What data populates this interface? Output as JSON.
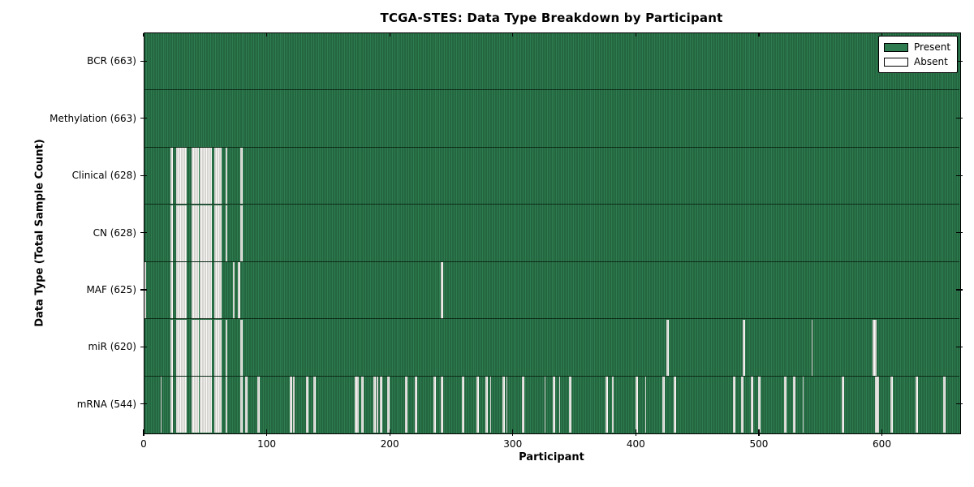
{
  "chart_data": {
    "type": "heatmap",
    "title": "TCGA-STES: Data Type Breakdown by Participant",
    "xlabel": "Participant",
    "ylabel": "Data Type (Total Sample Count)",
    "legend": [
      "Present",
      "Absent"
    ],
    "legend_position": "upper right",
    "n_participants": 663,
    "xlim": [
      0,
      663
    ],
    "xticks": [
      0,
      100,
      200,
      300,
      400,
      500,
      600
    ],
    "grid": false,
    "colors": {
      "present_fill": "#2e7c4f",
      "present_edge": "#1a5031",
      "absent_fill": "#f7f6f3",
      "absent_edge": "#b4b2af",
      "axis": "#000000",
      "background": "#ffffff"
    },
    "rows": [
      {
        "data_type": "BCR",
        "label": "BCR (663)",
        "present_count": 663,
        "absent_ranges": []
      },
      {
        "data_type": "Methylation",
        "label": "Methylation (663)",
        "present_count": 663,
        "absent_ranges": []
      },
      {
        "data_type": "Clinical",
        "label": "Clinical (628)",
        "present_count": 628,
        "absent_ranges": [
          [
            21,
            22
          ],
          [
            26,
            33
          ],
          [
            38,
            43
          ],
          [
            45,
            54
          ],
          [
            57,
            62
          ],
          [
            66,
            66
          ],
          [
            78,
            79
          ]
        ]
      },
      {
        "data_type": "CN",
        "label": "CN (628)",
        "present_count": 628,
        "absent_ranges": [
          [
            21,
            22
          ],
          [
            26,
            33
          ],
          [
            38,
            43
          ],
          [
            45,
            54
          ],
          [
            57,
            62
          ],
          [
            66,
            66
          ],
          [
            78,
            79
          ]
        ]
      },
      {
        "data_type": "MAF",
        "label": "MAF (625)",
        "present_count": 625,
        "absent_ranges": [
          [
            0,
            0
          ],
          [
            21,
            22
          ],
          [
            26,
            33
          ],
          [
            38,
            43
          ],
          [
            45,
            54
          ],
          [
            57,
            62
          ],
          [
            72,
            72
          ],
          [
            76,
            77
          ],
          [
            241,
            242
          ]
        ]
      },
      {
        "data_type": "miR",
        "label": "miR (620)",
        "present_count": 620,
        "absent_ranges": [
          [
            21,
            22
          ],
          [
            26,
            33
          ],
          [
            38,
            43
          ],
          [
            45,
            54
          ],
          [
            57,
            62
          ],
          [
            66,
            66
          ],
          [
            78,
            79
          ],
          [
            424,
            425
          ],
          [
            486,
            487
          ],
          [
            542,
            542
          ],
          [
            592,
            594
          ]
        ]
      },
      {
        "data_type": "mRNA",
        "label": "mRNA (544)",
        "present_count": 544,
        "absent_ranges": [
          [
            13,
            13
          ],
          [
            21,
            22
          ],
          [
            26,
            33
          ],
          [
            38,
            43
          ],
          [
            45,
            54
          ],
          [
            57,
            62
          ],
          [
            66,
            66
          ],
          [
            78,
            79
          ],
          [
            82,
            83
          ],
          [
            92,
            93
          ],
          [
            118,
            119
          ],
          [
            121,
            121
          ],
          [
            131,
            132
          ],
          [
            137,
            138
          ],
          [
            171,
            173
          ],
          [
            176,
            177
          ],
          [
            186,
            187
          ],
          [
            189,
            189
          ],
          [
            191,
            192
          ],
          [
            197,
            198
          ],
          [
            212,
            213
          ],
          [
            220,
            221
          ],
          [
            235,
            236
          ],
          [
            241,
            242
          ],
          [
            258,
            259
          ],
          [
            270,
            271
          ],
          [
            277,
            278
          ],
          [
            281,
            281
          ],
          [
            291,
            292
          ],
          [
            294,
            294
          ],
          [
            307,
            308
          ],
          [
            325,
            325
          ],
          [
            332,
            333
          ],
          [
            337,
            337
          ],
          [
            345,
            346
          ],
          [
            375,
            376
          ],
          [
            380,
            380
          ],
          [
            399,
            400
          ],
          [
            407,
            407
          ],
          [
            421,
            422
          ],
          [
            430,
            431
          ],
          [
            478,
            479
          ],
          [
            485,
            486
          ],
          [
            493,
            494
          ],
          [
            499,
            500
          ],
          [
            520,
            521
          ],
          [
            527,
            528
          ],
          [
            535,
            535
          ],
          [
            567,
            568
          ],
          [
            594,
            596
          ],
          [
            606,
            607
          ],
          [
            627,
            628
          ],
          [
            649,
            650
          ]
        ]
      }
    ]
  }
}
